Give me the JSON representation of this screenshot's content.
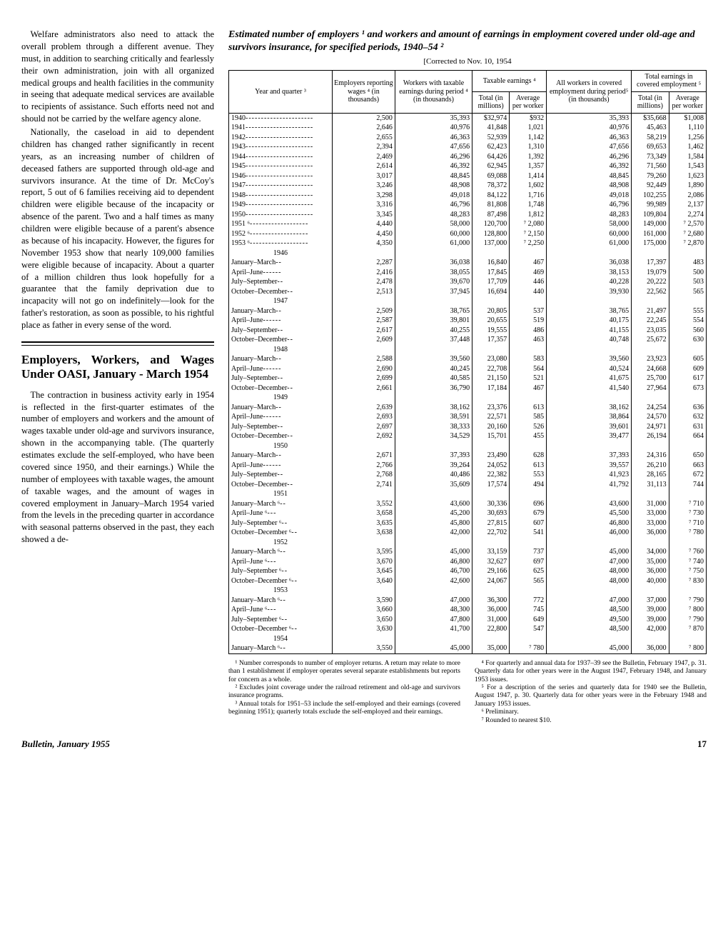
{
  "left": {
    "p1": "Welfare administrators also need to attack the overall problem through a different avenue. They must, in addition to searching critically and fearlessly their own administration, join with all organized medical groups and health facilities in the community in seeing that adequate medical services are available to recipients of assistance. Such efforts need not and should not be carried by the welfare agency alone.",
    "p2": "Nationally, the caseload in aid to dependent children has changed rather significantly in recent years, as an increasing number of children of deceased fathers are supported through old-age and survivors insurance. At the time of Dr. McCoy's report, 5 out of 6 families receiving aid to dependent children were eligible because of the incapacity or absence of the parent. Two and a half times as many children were eligible because of a parent's absence as because of his incapacity. However, the figures for November 1953 show that nearly 109,000 families were eligible because of incapacity. About a quarter of a million children thus look hopefully for a guarantee that the family deprivation due to incapacity will not go on indefinitely—look for the father's restoration, as soon as possible, to his rightful place as father in every sense of the word.",
    "section_head": "Employers, Workers, and Wages Under OASI, January - March 1954",
    "p3": "The contraction in business activity early in 1954 is reflected in the first-quarter estimates of the number of employers and workers and the amount of wages taxable under old-age and survivors insurance, shown in the accompanying table. (The quarterly estimates exclude the self-employed, who have been covered since 1950, and their earnings.) While the number of employees with taxable wages, the amount of taxable wages, and the amount of wages in covered employment in January–March 1954 varied from the levels in the preceding quarter in accordance with seasonal patterns observed in the past, they each showed a de-"
  },
  "table": {
    "title": "Estimated number of employers ¹ and workers and amount of earnings in employment covered under old-age and survivors insurance, for specified periods, 1940–54 ²",
    "corrected": "[Corrected to Nov. 10, 1954",
    "headers": {
      "c1": "Year and quarter ³",
      "c2": "Employers reporting wages ⁴ (in thousands)",
      "c3": "Workers with taxable earnings during period ⁴ (in thousands)",
      "c4g": "Taxable earnings ⁴",
      "c4a": "Total (in millions)",
      "c4b": "Average per worker",
      "c5": "All workers in covered employment during period⁵ (in thousands)",
      "c6g": "Total earnings in covered employment ⁵",
      "c6a": "Total (in millions)",
      "c6b": "Average per worker"
    },
    "rows_annual": [
      [
        "1940",
        "2,500",
        "35,393",
        "$32,974",
        "$932",
        "35,393",
        "$35,668",
        "$1,008"
      ],
      [
        "1941",
        "2,646",
        "40,976",
        "41,848",
        "1,021",
        "40,976",
        "45,463",
        "1,110"
      ],
      [
        "1942",
        "2,655",
        "46,363",
        "52,939",
        "1,142",
        "46,363",
        "58,219",
        "1,256"
      ],
      [
        "1943",
        "2,394",
        "47,656",
        "62,423",
        "1,310",
        "47,656",
        "69,653",
        "1,462"
      ],
      [
        "1944",
        "2,469",
        "46,296",
        "64,426",
        "1,392",
        "46,296",
        "73,349",
        "1,584"
      ],
      [
        "1945",
        "2,614",
        "46,392",
        "62,945",
        "1,357",
        "46,392",
        "71,560",
        "1,543"
      ],
      [
        "1946",
        "3,017",
        "48,845",
        "69,088",
        "1,414",
        "48,845",
        "79,260",
        "1,623"
      ],
      [
        "1947",
        "3,246",
        "48,908",
        "78,372",
        "1,602",
        "48,908",
        "92,449",
        "1,890"
      ],
      [
        "1948",
        "3,298",
        "49,018",
        "84,122",
        "1,716",
        "49,018",
        "102,255",
        "2,086"
      ],
      [
        "1949",
        "3,316",
        "46,796",
        "81,808",
        "1,748",
        "46,796",
        "99,989",
        "2,137"
      ],
      [
        "1950",
        "3,345",
        "48,283",
        "87,498",
        "1,812",
        "48,283",
        "109,804",
        "2,274"
      ],
      [
        "1951 ⁶",
        "4,440",
        "58,000",
        "120,700",
        "⁷ 2,080",
        "58,000",
        "149,000",
        "⁷ 2,570"
      ],
      [
        "1952 ⁶",
        "4,450",
        "60,000",
        "128,800",
        "⁷ 2,150",
        "60,000",
        "161,000",
        "⁷ 2,680"
      ],
      [
        "1953 ⁶",
        "4,350",
        "61,000",
        "137,000",
        "⁷ 2,250",
        "61,000",
        "175,000",
        "⁷ 2,870"
      ]
    ],
    "groups": [
      {
        "year": "1946",
        "rows": [
          [
            "January–March",
            "2,287",
            "36,038",
            "16,840",
            "467",
            "36,038",
            "17,397",
            "483"
          ],
          [
            "April–June",
            "2,416",
            "38,055",
            "17,845",
            "469",
            "38,153",
            "19,079",
            "500"
          ],
          [
            "July–September",
            "2,478",
            "39,670",
            "17,709",
            "446",
            "40,228",
            "20,222",
            "503"
          ],
          [
            "October–December",
            "2,513",
            "37,945",
            "16,694",
            "440",
            "39,930",
            "22,562",
            "565"
          ]
        ]
      },
      {
        "year": "1947",
        "rows": [
          [
            "January–March",
            "2,509",
            "38,765",
            "20,805",
            "537",
            "38,765",
            "21,497",
            "555"
          ],
          [
            "April–June",
            "2,587",
            "39,801",
            "20,655",
            "519",
            "40,175",
            "22,245",
            "554"
          ],
          [
            "July–September",
            "2,617",
            "40,255",
            "19,555",
            "486",
            "41,155",
            "23,035",
            "560"
          ],
          [
            "October–December",
            "2,609",
            "37,448",
            "17,357",
            "463",
            "40,748",
            "25,672",
            "630"
          ]
        ]
      },
      {
        "year": "1948",
        "rows": [
          [
            "January–March",
            "2,588",
            "39,560",
            "23,080",
            "583",
            "39,560",
            "23,923",
            "605"
          ],
          [
            "April–June",
            "2,690",
            "40,245",
            "22,708",
            "564",
            "40,524",
            "24,668",
            "609"
          ],
          [
            "July–September",
            "2,699",
            "40,585",
            "21,150",
            "521",
            "41,675",
            "25,700",
            "617"
          ],
          [
            "October–December",
            "2,661",
            "36,790",
            "17,184",
            "467",
            "41,540",
            "27,964",
            "673"
          ]
        ]
      },
      {
        "year": "1949",
        "rows": [
          [
            "January–March",
            "2,639",
            "38,162",
            "23,376",
            "613",
            "38,162",
            "24,254",
            "636"
          ],
          [
            "April–June",
            "2,693",
            "38,591",
            "22,571",
            "585",
            "38,864",
            "24,570",
            "632"
          ],
          [
            "July–September",
            "2,697",
            "38,333",
            "20,160",
            "526",
            "39,601",
            "24,971",
            "631"
          ],
          [
            "October–December",
            "2,692",
            "34,529",
            "15,701",
            "455",
            "39,477",
            "26,194",
            "664"
          ]
        ]
      },
      {
        "year": "1950",
        "rows": [
          [
            "January–March",
            "2,671",
            "37,393",
            "23,490",
            "628",
            "37,393",
            "24,316",
            "650"
          ],
          [
            "April–June",
            "2,766",
            "39,264",
            "24,052",
            "613",
            "39,557",
            "26,210",
            "663"
          ],
          [
            "July–September",
            "2,768",
            "40,486",
            "22,382",
            "553",
            "41,923",
            "28,165",
            "672"
          ],
          [
            "October–December",
            "2,741",
            "35,609",
            "17,574",
            "494",
            "41,792",
            "31,113",
            "744"
          ]
        ]
      },
      {
        "year": "1951",
        "rows": [
          [
            "January–March ⁶",
            "3,552",
            "43,600",
            "30,336",
            "696",
            "43,600",
            "31,000",
            "⁷ 710"
          ],
          [
            "April–June ⁶",
            "3,658",
            "45,200",
            "30,693",
            "679",
            "45,500",
            "33,000",
            "⁷ 730"
          ],
          [
            "July–September ⁶",
            "3,635",
            "45,800",
            "27,815",
            "607",
            "46,800",
            "33,000",
            "⁷ 710"
          ],
          [
            "October–December ⁶",
            "3,638",
            "42,000",
            "22,702",
            "541",
            "46,000",
            "36,000",
            "⁷ 780"
          ]
        ]
      },
      {
        "year": "1952",
        "rows": [
          [
            "January–March ⁶",
            "3,595",
            "45,000",
            "33,159",
            "737",
            "45,000",
            "34,000",
            "⁷ 760"
          ],
          [
            "April–June ⁶",
            "3,670",
            "46,800",
            "32,627",
            "697",
            "47,000",
            "35,000",
            "⁷ 740"
          ],
          [
            "July–September ⁶",
            "3,645",
            "46,700",
            "29,166",
            "625",
            "48,000",
            "36,000",
            "⁷ 750"
          ],
          [
            "October–December ⁶",
            "3,640",
            "42,600",
            "24,067",
            "565",
            "48,000",
            "40,000",
            "⁷ 830"
          ]
        ]
      },
      {
        "year": "1953",
        "rows": [
          [
            "January–March ⁶",
            "3,590",
            "47,000",
            "36,300",
            "772",
            "47,000",
            "37,000",
            "⁷ 790"
          ],
          [
            "April–June ⁶",
            "3,660",
            "48,300",
            "36,000",
            "745",
            "48,500",
            "39,000",
            "⁷ 800"
          ],
          [
            "July–September ⁶",
            "3,650",
            "47,800",
            "31,000",
            "649",
            "49,500",
            "39,000",
            "⁷ 790"
          ],
          [
            "October–December ⁶",
            "3,630",
            "41,700",
            "22,800",
            "547",
            "48,500",
            "42,000",
            "⁷ 870"
          ]
        ]
      },
      {
        "year": "1954",
        "rows": [
          [
            "January–March ⁶",
            "3,550",
            "45,000",
            "35,000",
            "⁷ 780",
            "45,000",
            "36,000",
            "⁷ 800"
          ]
        ]
      }
    ]
  },
  "footnotes": {
    "left": [
      "¹ Number corresponds to number of employer returns. A return may relate to more than 1 establishment if employer operates several separate establishments but reports for concern as a whole.",
      "² Excludes joint coverage under the railroad retirement and old-age and survivors insurance programs.",
      "³ Annual totals for 1951–53 include the self-employed and their earnings (covered beginning 1951); quarterly totals exclude the self-employed and their earnings."
    ],
    "right": [
      "⁴ For quarterly and annual data for 1937–39 see the Bulletin, February 1947, p. 31. Quarterly data for other years were in the August 1947, February 1948, and January 1953 issues.",
      "⁵ For a description of the series and quarterly data for 1940 see the Bulletin, August 1947, p. 30. Quarterly data for other years were in the February 1948 and January 1953 issues.",
      "⁶ Preliminary.",
      "⁷ Rounded to nearest $10."
    ]
  },
  "footer": {
    "source": "Bulletin, January 1955",
    "page": "17"
  }
}
